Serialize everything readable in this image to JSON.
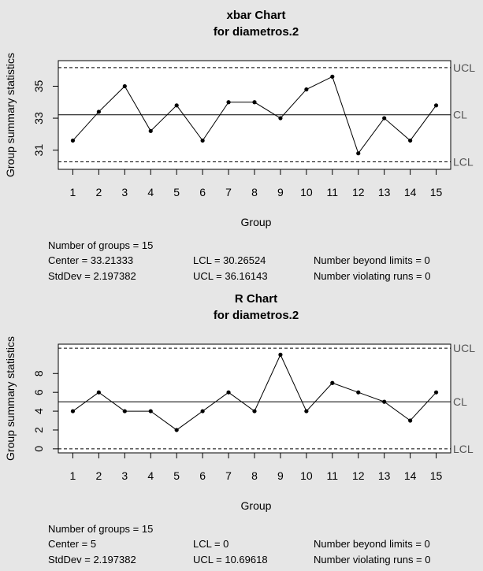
{
  "charts": [
    {
      "id": "xbar",
      "title": "xbar Chart",
      "subtitle": "for diametros.2",
      "ylabel": "Group summary statistics",
      "xlabel": "Group",
      "stats": {
        "groups": "Number of groups = 15",
        "center": "Center = 33.21333",
        "stddev": "StdDev = 2.197382",
        "lcl": "LCL = 30.26524",
        "ucl": "UCL = 36.16143",
        "beyond": "Number beyond limits = 0",
        "violating": "Number violating runs = 0"
      }
    },
    {
      "id": "r",
      "title": "R Chart",
      "subtitle": "for diametros.2",
      "ylabel": "Group summary statistics",
      "xlabel": "Group",
      "stats": {
        "groups": "Number of groups = 15",
        "center": "Center = 5",
        "stddev": "StdDev = 2.197382",
        "lcl": "LCL = 0",
        "ucl": "UCL = 10.69618",
        "beyond": "Number beyond limits = 0",
        "violating": "Number violating runs = 0"
      }
    }
  ],
  "chart_data": [
    {
      "type": "line",
      "title": "xbar Chart",
      "subtitle": "for diametros.2",
      "xlabel": "Group",
      "ylabel": "Group summary statistics",
      "x": [
        1,
        2,
        3,
        4,
        5,
        6,
        7,
        8,
        9,
        10,
        11,
        12,
        13,
        14,
        15
      ],
      "values": [
        31.6,
        33.4,
        35.0,
        32.2,
        33.8,
        31.6,
        34.0,
        34.0,
        33.0,
        34.8,
        35.6,
        30.8,
        33.0,
        31.6,
        33.8
      ],
      "xlim": [
        0.44,
        15.56
      ],
      "ylim": [
        29.8,
        36.6
      ],
      "yticks": [
        31,
        33,
        35
      ],
      "center": 33.21333,
      "lcl": 30.26524,
      "ucl": 36.16143,
      "limit_labels": {
        "ucl": "UCL",
        "center": "CL",
        "lcl": "LCL"
      },
      "grid": false
    },
    {
      "type": "line",
      "title": "R Chart",
      "subtitle": "for diametros.2",
      "xlabel": "Group",
      "ylabel": "Group summary statistics",
      "x": [
        1,
        2,
        3,
        4,
        5,
        6,
        7,
        8,
        9,
        10,
        11,
        12,
        13,
        14,
        15
      ],
      "values": [
        4,
        6,
        4,
        4,
        2,
        4,
        6,
        4,
        10,
        4,
        7,
        6,
        5,
        3,
        6
      ],
      "xlim": [
        0.44,
        15.56
      ],
      "ylim": [
        -0.43,
        11.12
      ],
      "yticks": [
        0,
        2,
        4,
        6,
        8
      ],
      "center": 5,
      "lcl": 0,
      "ucl": 10.69618,
      "limit_labels": {
        "ucl": "UCL",
        "center": "CL",
        "lcl": "LCL"
      },
      "grid": false
    }
  ]
}
